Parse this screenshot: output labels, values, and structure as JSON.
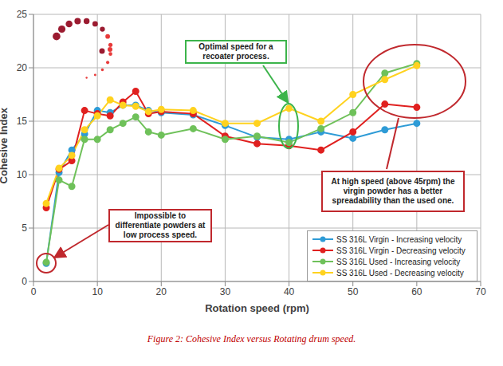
{
  "chart_data": {
    "type": "line",
    "caption": "Figure 2: Cohesive Index versus Rotating drum speed.",
    "xlabel": "Rotation speed (rpm)",
    "ylabel": "Cohesive Index",
    "x": [
      2,
      4,
      6,
      8,
      10,
      12,
      14,
      16,
      18,
      20,
      25,
      30,
      35,
      40,
      45,
      50,
      55,
      60
    ],
    "series": [
      {
        "name": "SS 316L Virgin - Increasing velocity",
        "color": "#2e9bd6",
        "values": [
          1.7,
          10.2,
          12.3,
          13.8,
          16.0,
          15.8,
          16.5,
          16.5,
          16.0,
          15.8,
          15.6,
          14.6,
          13.5,
          13.3,
          14.0,
          13.4,
          14.2,
          14.8
        ]
      },
      {
        "name": "SS 316L Virgin - Decreasing velocity",
        "color": "#e0201f",
        "values": [
          6.9,
          10.5,
          11.3,
          16.0,
          15.7,
          15.5,
          16.8,
          17.8,
          15.7,
          15.9,
          15.7,
          13.6,
          12.9,
          12.7,
          12.3,
          14.0,
          16.6,
          16.3
        ]
      },
      {
        "name": "SS 316L Used - Increasing velocity",
        "color": "#6fc15a",
        "values": [
          1.8,
          9.5,
          8.9,
          13.3,
          13.3,
          14.2,
          14.8,
          15.4,
          14.0,
          13.7,
          14.3,
          13.3,
          13.6,
          13.0,
          14.3,
          15.8,
          19.5,
          20.4
        ]
      },
      {
        "name": "SS 316L Used - Decreasing velocity",
        "color": "#ffd21f",
        "values": [
          7.3,
          10.6,
          11.8,
          14.2,
          15.5,
          17.0,
          16.5,
          16.4,
          15.9,
          16.1,
          16.0,
          14.8,
          14.8,
          16.2,
          15.0,
          17.5,
          18.9,
          20.2
        ]
      }
    ],
    "xlim": [
      0,
      70
    ],
    "xticks": [
      0,
      10,
      20,
      30,
      40,
      50,
      60,
      70
    ],
    "ylim": [
      0,
      25
    ],
    "yticks": [
      0,
      5,
      10,
      15,
      20,
      25
    ],
    "grid": true,
    "legend": "lower right",
    "marker": "circle",
    "annotations": [
      "Optimal speed for a recoater process.",
      "Impossible to differentiate powders at low process speed.",
      "At high speed (above 45rpm) the virgin powder has a better spreadability than the used one."
    ]
  }
}
